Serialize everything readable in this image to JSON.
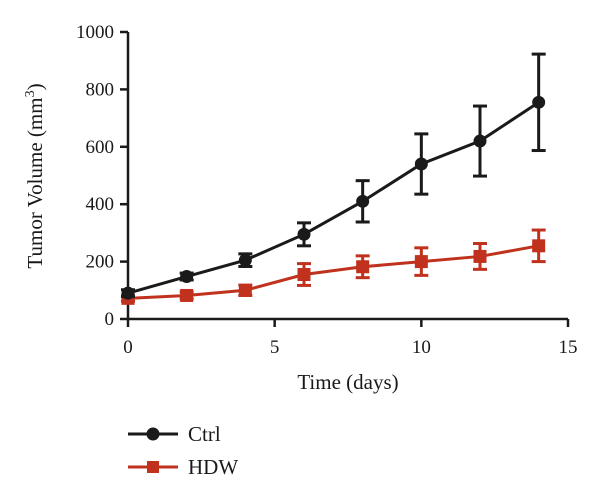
{
  "chart_data": {
    "type": "line",
    "xlabel": "Time (days)",
    "ylabel_main": "Tumor Volume (mm",
    "ylabel_sup": "3",
    "ylabel_close": ")",
    "xlim": [
      0,
      15
    ],
    "ylim": [
      0,
      1000
    ],
    "xticks": [
      "0",
      "5",
      "10",
      "15"
    ],
    "yticks": [
      "0",
      "200",
      "400",
      "600",
      "800",
      "1000"
    ],
    "grid": false,
    "legend_position": "bottom-left",
    "series": [
      {
        "name": "Ctrl",
        "color": "#1a1a1a",
        "marker": "circle",
        "x": [
          0,
          2,
          4,
          6,
          8,
          10,
          12,
          14
        ],
        "y": [
          90,
          148,
          205,
          295,
          410,
          540,
          620,
          755
        ],
        "err": [
          12,
          12,
          22,
          40,
          72,
          105,
          122,
          168
        ]
      },
      {
        "name": "HDW",
        "color": "#c0321e",
        "marker": "square",
        "x": [
          0,
          2,
          4,
          6,
          8,
          10,
          12,
          14
        ],
        "y": [
          72,
          82,
          100,
          155,
          182,
          200,
          218,
          255
        ],
        "err": [
          10,
          12,
          18,
          38,
          38,
          48,
          45,
          55
        ]
      }
    ]
  }
}
